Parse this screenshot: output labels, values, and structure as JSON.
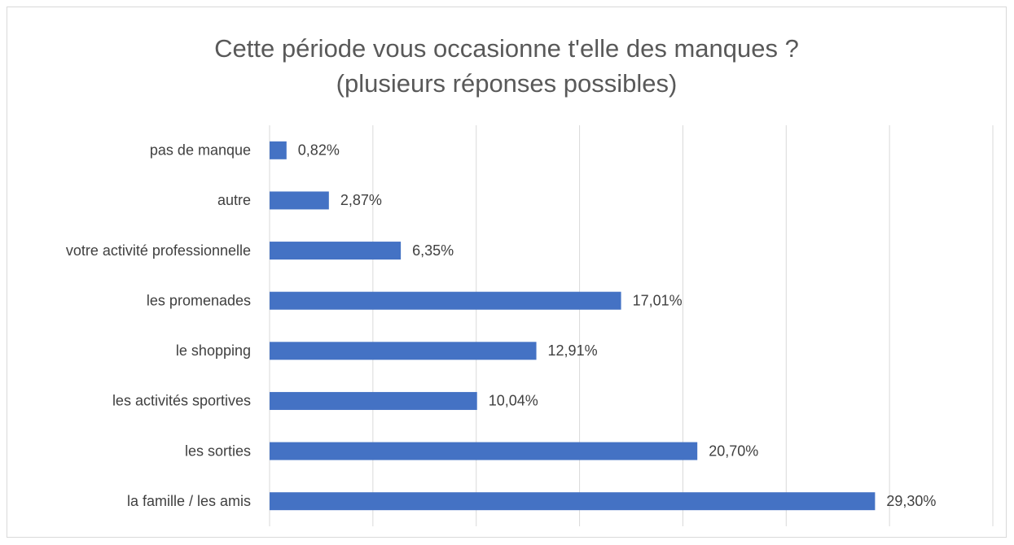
{
  "chart_data": {
    "type": "barh",
    "title": "Cette période vous occasionne t'elle des manques ? (plusieurs réponses possibles)",
    "categories": [
      "pas de manque",
      "autre",
      "votre activité professionnelle",
      "les promenades",
      "le shopping",
      "les activités sportives",
      "les sorties",
      "la famille / les amis"
    ],
    "values": [
      0.82,
      2.87,
      6.35,
      17.01,
      12.91,
      10.04,
      20.7,
      29.3
    ],
    "value_labels": [
      "0,82%",
      "2,87%",
      "6,35%",
      "17,01%",
      "12,91%",
      "10,04%",
      "20,70%",
      "29,30%"
    ],
    "color": "#4472c4",
    "xlim": [
      0,
      35
    ],
    "xticks": [
      0,
      5,
      10,
      15,
      20,
      25,
      30,
      35
    ],
    "grid": true
  }
}
